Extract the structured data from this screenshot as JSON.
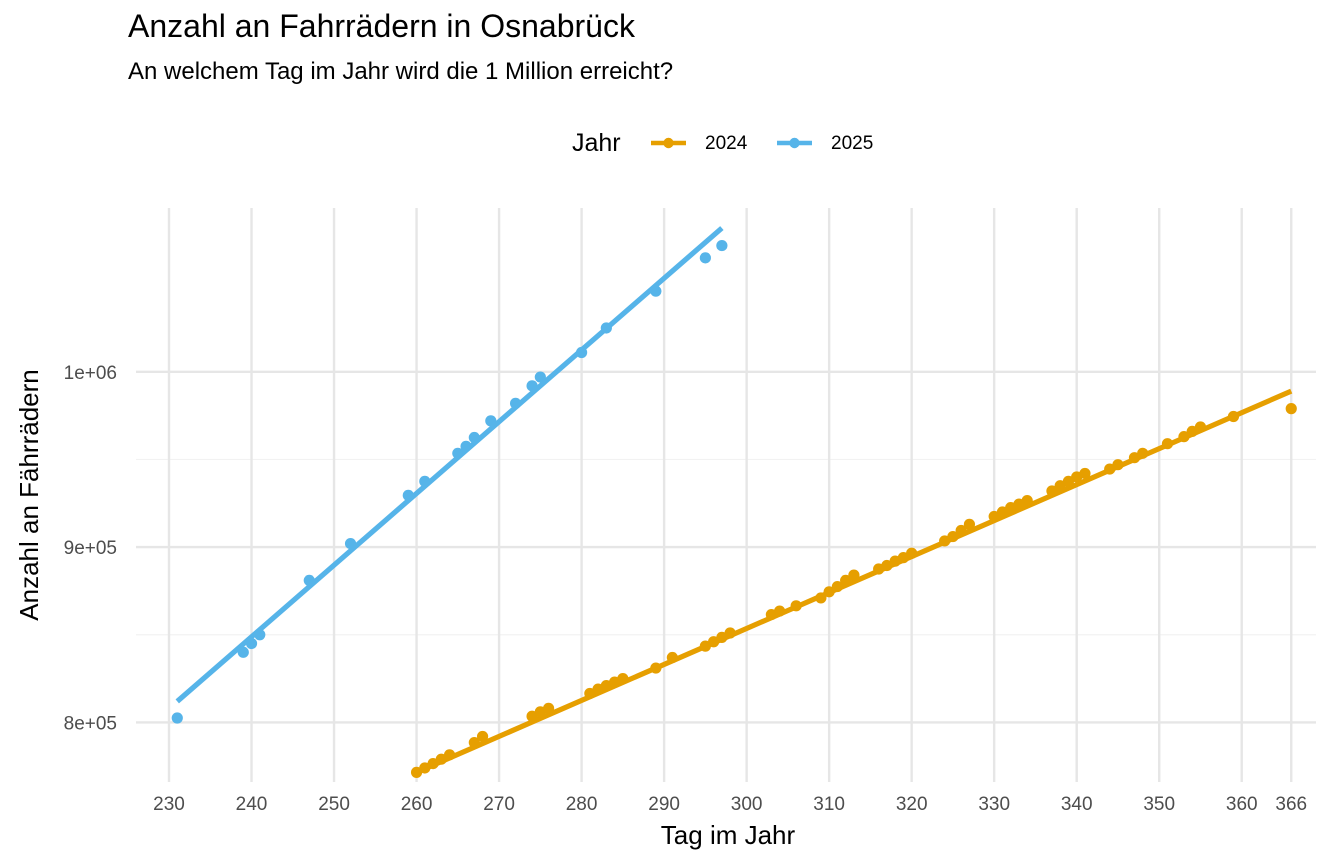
{
  "chart_data": {
    "type": "scatter",
    "title": "Anzahl an Fahrrädern in Osnabrück",
    "subtitle": "An welchem Tag im Jahr wird die 1 Million erreicht?",
    "xlabel": "Tag im Jahr",
    "ylabel": "Anzahl an Fährrädern",
    "xlim": [
      226,
      369
    ],
    "ylim": [
      766000,
      1098000
    ],
    "x_ticks": [
      230,
      240,
      250,
      260,
      270,
      280,
      290,
      300,
      310,
      320,
      330,
      340,
      350,
      360,
      366
    ],
    "x_tick_labels": [
      "230",
      "240",
      "250",
      "260",
      "270",
      "280",
      "290",
      "300",
      "310",
      "320",
      "330",
      "340",
      "350",
      "360",
      "366"
    ],
    "y_ticks": [
      800000,
      900000,
      1000000
    ],
    "y_tick_labels": [
      "8e+05",
      "9e+05",
      "1e+06"
    ],
    "grid": true,
    "legend_title": "Jahr",
    "legend_position": "top",
    "series": [
      {
        "name": "2024",
        "color": "#E69F00",
        "trend": [
          [
            260,
            771500
          ],
          [
            366,
            989000
          ]
        ],
        "points": [
          [
            260,
            771500
          ],
          [
            261,
            774000
          ],
          [
            262,
            776500
          ],
          [
            263,
            779000
          ],
          [
            264,
            781500
          ],
          [
            267,
            788500
          ],
          [
            268,
            792000
          ],
          [
            274,
            803500
          ],
          [
            275,
            806000
          ],
          [
            276,
            808000
          ],
          [
            281,
            816500
          ],
          [
            282,
            819000
          ],
          [
            283,
            821000
          ],
          [
            284,
            823000
          ],
          [
            285,
            825000
          ],
          [
            289,
            831000
          ],
          [
            291,
            837000
          ],
          [
            295,
            843500
          ],
          [
            296,
            846000
          ],
          [
            297,
            848500
          ],
          [
            298,
            851000
          ],
          [
            303,
            861500
          ],
          [
            304,
            863500
          ],
          [
            306,
            866500
          ],
          [
            309,
            871000
          ],
          [
            310,
            874500
          ],
          [
            311,
            877500
          ],
          [
            312,
            881000
          ],
          [
            313,
            884000
          ],
          [
            316,
            887500
          ],
          [
            317,
            889500
          ],
          [
            318,
            892000
          ],
          [
            319,
            894000
          ],
          [
            320,
            896500
          ],
          [
            324,
            903500
          ],
          [
            325,
            906000
          ],
          [
            326,
            909500
          ],
          [
            327,
            913000
          ],
          [
            330,
            917500
          ],
          [
            331,
            920000
          ],
          [
            332,
            922500
          ],
          [
            333,
            924500
          ],
          [
            334,
            926500
          ],
          [
            337,
            932000
          ],
          [
            338,
            935000
          ],
          [
            339,
            937500
          ],
          [
            340,
            940000
          ],
          [
            341,
            942000
          ],
          [
            344,
            944500
          ],
          [
            345,
            947000
          ],
          [
            347,
            951000
          ],
          [
            348,
            953500
          ],
          [
            351,
            959000
          ],
          [
            353,
            963000
          ],
          [
            354,
            966000
          ],
          [
            355,
            968500
          ],
          [
            359,
            974500
          ],
          [
            366,
            979000
          ]
        ]
      },
      {
        "name": "2025",
        "color": "#56B4E9",
        "trend": [
          [
            231,
            812000
          ],
          [
            297,
            1082000
          ]
        ],
        "points": [
          [
            231,
            802500
          ],
          [
            239,
            840000
          ],
          [
            240,
            845000
          ],
          [
            241,
            850000
          ],
          [
            247,
            881000
          ],
          [
            252,
            902000
          ],
          [
            259,
            929500
          ],
          [
            261,
            937500
          ],
          [
            265,
            953500
          ],
          [
            266,
            957500
          ],
          [
            267,
            962500
          ],
          [
            269,
            972000
          ],
          [
            272,
            982000
          ],
          [
            274,
            992000
          ],
          [
            275,
            997000
          ],
          [
            280,
            1011000
          ],
          [
            283,
            1025000
          ],
          [
            289,
            1046000
          ],
          [
            295,
            1065000
          ],
          [
            297,
            1072000
          ]
        ]
      }
    ]
  }
}
